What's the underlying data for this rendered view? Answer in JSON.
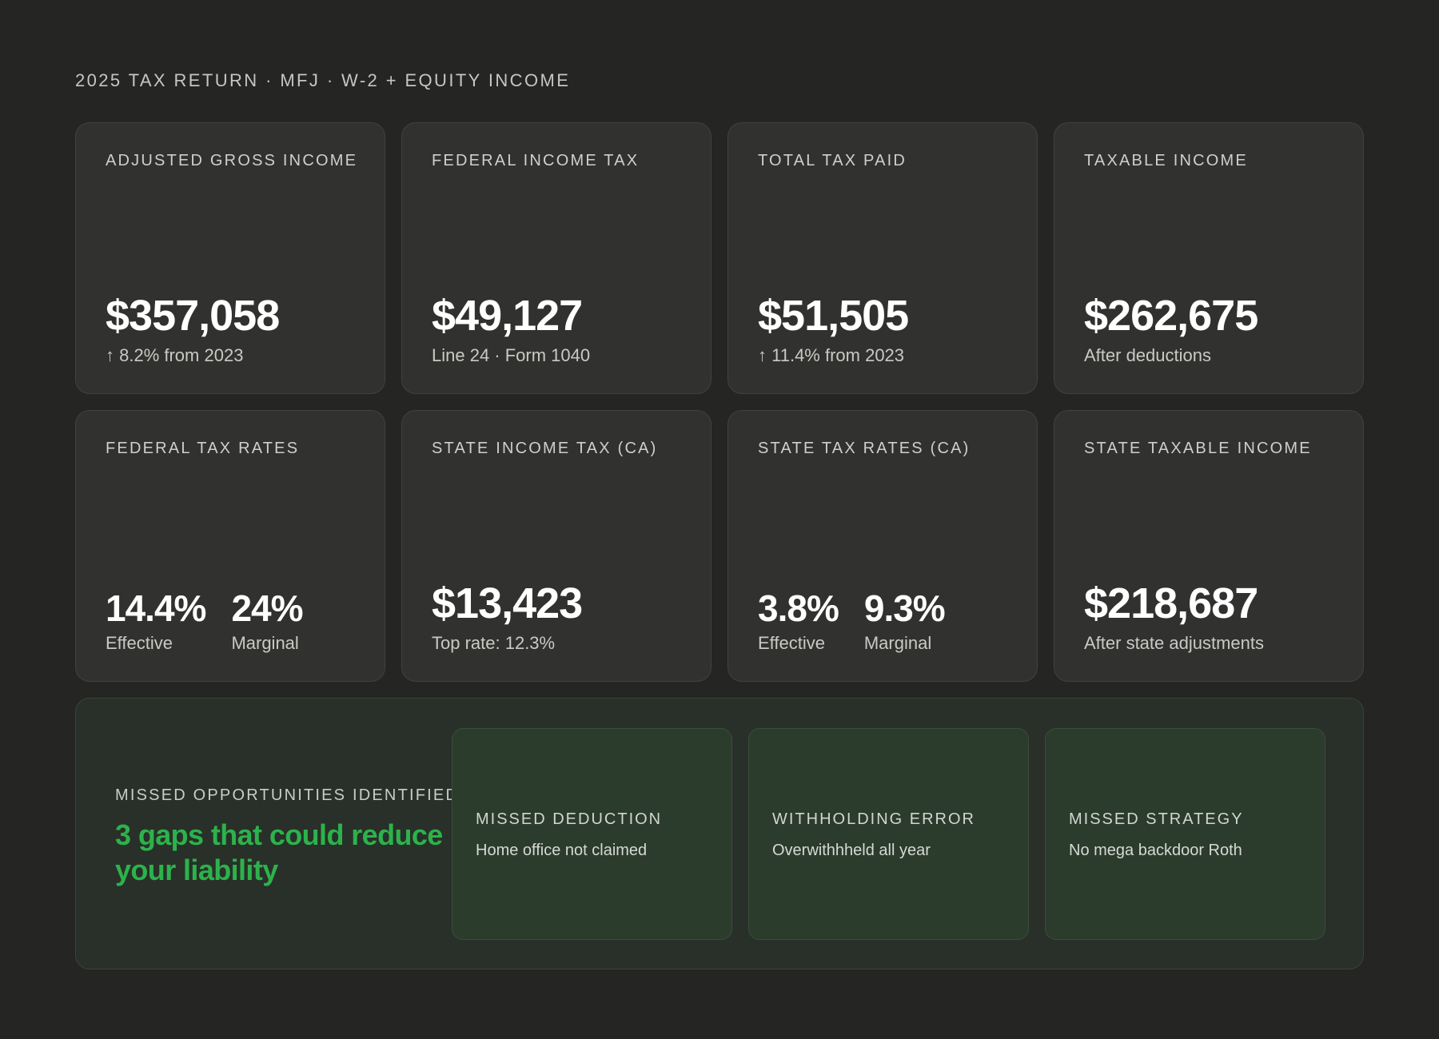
{
  "header": {
    "label": "2025 TAX RETURN · MFJ · W-2 + EQUITY INCOME"
  },
  "cards": [
    {
      "label": "ADJUSTED GROSS INCOME",
      "value": "$357,058",
      "sub": "↑ 8.2% from 2023"
    },
    {
      "label": "FEDERAL INCOME TAX",
      "value": "$49,127",
      "sub": "Line 24 · Form 1040"
    },
    {
      "label": "TOTAL TAX PAID",
      "value": "$51,505",
      "sub": "↑ 11.4% from 2023"
    },
    {
      "label": "TAXABLE INCOME",
      "value": "$262,675",
      "sub": "After deductions"
    },
    {
      "label": "FEDERAL TAX RATES",
      "rates": [
        {
          "value": "14.4%",
          "caption": "Effective"
        },
        {
          "value": "24%",
          "caption": "Marginal"
        }
      ]
    },
    {
      "label": "STATE INCOME TAX (CA)",
      "value": "$13,423",
      "sub": "Top rate: 12.3%"
    },
    {
      "label": "STATE TAX RATES (CA)",
      "rates": [
        {
          "value": "3.8%",
          "caption": "Effective"
        },
        {
          "value": "9.3%",
          "caption": "Marginal"
        }
      ]
    },
    {
      "label": "STATE TAXABLE INCOME",
      "value": "$218,687",
      "sub": "After state adjustments"
    }
  ],
  "opportunities": {
    "kicker": "MISSED OPPORTUNITIES IDENTIFIED",
    "headline": "3 gaps that could reduce your liability",
    "headline_color": "#2db24b",
    "items": [
      {
        "title": "MISSED DEDUCTION",
        "desc": "Home office not claimed"
      },
      {
        "title": "WITHHOLDING ERROR",
        "desc": "Overwithhheld all year"
      },
      {
        "title": "MISSED STRATEGY",
        "desc": "No mega backdoor Roth"
      }
    ]
  },
  "colors": {
    "background": "#252523",
    "card": "#31312f",
    "panel": "#283029",
    "accent_green": "#2db24b"
  }
}
